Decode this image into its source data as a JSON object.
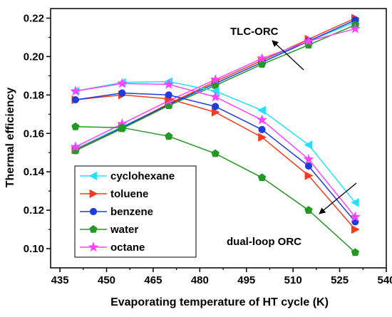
{
  "chart_data": {
    "type": "line",
    "title": "",
    "xlabel": "Evaporating temperature of HT cycle (K)",
    "ylabel": "Thermal efficiency",
    "xlim": [
      432,
      540
    ],
    "ylim": [
      0.09,
      0.225
    ],
    "xticks": [
      435,
      450,
      465,
      480,
      495,
      510,
      525,
      540
    ],
    "yticks": [
      0.1,
      0.12,
      0.14,
      0.16,
      0.18,
      0.2,
      0.22
    ],
    "ytick_labels": [
      "0.10",
      "0.12",
      "0.14",
      "0.16",
      "0.18",
      "0.20",
      "0.22"
    ],
    "x": [
      440,
      455,
      470,
      485,
      500,
      515,
      530
    ],
    "legend_position": "bottom-left",
    "groups": [
      {
        "label": "TLC-ORC",
        "series": [
          {
            "name": "cyclohexane",
            "values": [
              0.152,
              0.1635,
              0.175,
              0.187,
              0.198,
              0.208,
              0.218
            ]
          },
          {
            "name": "toluene",
            "values": [
              0.1515,
              0.163,
              0.1755,
              0.187,
              0.198,
              0.209,
              0.22
            ]
          },
          {
            "name": "benzene",
            "values": [
              0.151,
              0.163,
              0.175,
              0.186,
              0.197,
              0.208,
              0.219
            ]
          },
          {
            "name": "water",
            "values": [
              0.151,
              0.1625,
              0.1745,
              0.185,
              0.196,
              0.206,
              0.2165
            ]
          },
          {
            "name": "octane",
            "values": [
              0.153,
              0.165,
              0.177,
              0.188,
              0.199,
              0.208,
              0.2145
            ]
          }
        ]
      },
      {
        "label": "dual-loop ORC",
        "series": [
          {
            "name": "cyclohexane",
            "values": [
              0.182,
              0.1865,
              0.187,
              0.182,
              0.172,
              0.154,
              0.124
            ]
          },
          {
            "name": "toluene",
            "values": [
              0.1775,
              0.18,
              0.178,
              0.171,
              0.158,
              0.138,
              0.11
            ]
          },
          {
            "name": "benzene",
            "values": [
              0.1775,
              0.181,
              0.18,
              0.174,
              0.162,
              0.143,
              0.114
            ]
          },
          {
            "name": "water",
            "values": [
              0.1635,
              0.163,
              0.1585,
              0.1495,
              0.137,
              0.12,
              0.098
            ]
          },
          {
            "name": "octane",
            "values": [
              0.182,
              0.186,
              0.1855,
              0.179,
              0.167,
              0.1465,
              0.1165
            ]
          }
        ]
      }
    ],
    "series_styles": [
      {
        "name": "cyclohexane",
        "color": "#22e0ff",
        "marker": "triangle-left"
      },
      {
        "name": "toluene",
        "color": "#f73b1f",
        "marker": "triangle-right"
      },
      {
        "name": "benzene",
        "color": "#1f3ce0",
        "marker": "circle"
      },
      {
        "name": "water",
        "color": "#229922",
        "marker": "pentagon"
      },
      {
        "name": "octane",
        "color": "#ff44ff",
        "marker": "star"
      }
    ],
    "annotations": [
      "TLC-ORC",
      "dual-loop ORC"
    ]
  }
}
